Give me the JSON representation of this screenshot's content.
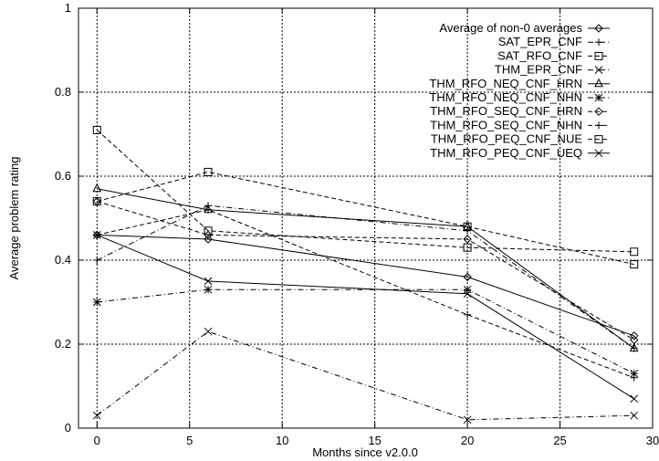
{
  "chart_data": {
    "type": "line",
    "title": "",
    "xlabel": "Months since v2.0.0",
    "ylabel": "Average problem rating",
    "xlim": [
      -1,
      30
    ],
    "ylim": [
      0,
      1
    ],
    "xticks": [
      0,
      5,
      10,
      15,
      20,
      25,
      30
    ],
    "yticks": [
      0,
      0.2,
      0.4,
      0.6,
      0.8,
      1
    ],
    "ytick_labels": [
      "0",
      "0.2",
      "0.4",
      "0.6",
      "0.8",
      "1"
    ],
    "grid": true,
    "legend_position": "top-right",
    "series": [
      {
        "name": "Average of non-0 averages",
        "marker": "diamond",
        "dash": "solid",
        "x": [
          0,
          6,
          20,
          29
        ],
        "y": [
          0.46,
          0.45,
          0.36,
          0.22
        ]
      },
      {
        "name": "SAT_EPR_CNF",
        "marker": "plus",
        "dash": "dashdot",
        "x": [
          0,
          6,
          20,
          29
        ],
        "y": [
          0.4,
          0.53,
          0.47,
          0.19
        ]
      },
      {
        "name": "SAT_RFO_CNF",
        "marker": "square",
        "dash": "dashed",
        "x": [
          0,
          6,
          20,
          29
        ],
        "y": [
          0.54,
          0.61,
          0.48,
          0.39
        ]
      },
      {
        "name": "THM_EPR_CNF",
        "marker": "x",
        "dash": "dashdot",
        "x": [
          0,
          6,
          20,
          29
        ],
        "y": [
          0.03,
          0.23,
          0.02,
          0.03
        ]
      },
      {
        "name": "THM_RFO_NEQ_CNF_HRN",
        "marker": "triangle",
        "dash": "solid",
        "x": [
          0,
          6,
          20,
          29
        ],
        "y": [
          0.57,
          0.52,
          0.48,
          0.19
        ]
      },
      {
        "name": "THM_RFO_NEQ_CNF_NHN",
        "marker": "star",
        "dash": "dashdot",
        "x": [
          0,
          6,
          20,
          29
        ],
        "y": [
          0.3,
          0.33,
          0.33,
          0.13
        ]
      },
      {
        "name": "THM_RFO_SEQ_CNF_HRN",
        "marker": "diamond",
        "dash": "dashed",
        "x": [
          0,
          6,
          20,
          29
        ],
        "y": [
          0.54,
          0.46,
          0.45,
          0.21
        ]
      },
      {
        "name": "THM_RFO_SEQ_CNF_NHN",
        "marker": "plus",
        "dash": "dashed",
        "x": [
          0,
          6,
          20,
          29
        ],
        "y": [
          0.46,
          0.52,
          0.27,
          0.12
        ]
      },
      {
        "name": "THM_RFO_PEQ_CNF_NUE",
        "marker": "square",
        "dash": "dashed",
        "x": [
          0,
          6,
          20,
          29
        ],
        "y": [
          0.71,
          0.47,
          0.43,
          0.42
        ]
      },
      {
        "name": "THM_RFO_PEQ_CNF_UEQ",
        "marker": "x",
        "dash": "solid",
        "x": [
          0,
          6,
          20,
          29
        ],
        "y": [
          0.46,
          0.35,
          0.32,
          0.07
        ]
      }
    ]
  }
}
